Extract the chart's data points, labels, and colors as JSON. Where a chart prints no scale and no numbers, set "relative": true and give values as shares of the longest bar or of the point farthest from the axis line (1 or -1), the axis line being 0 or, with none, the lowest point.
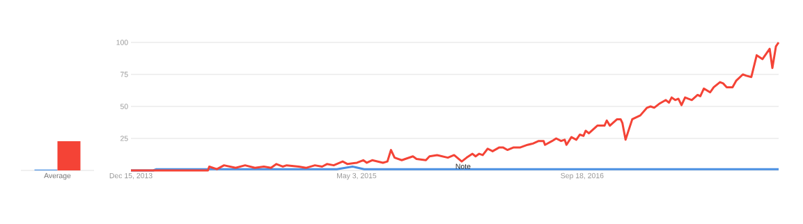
{
  "chart_data": [
    {
      "type": "bar",
      "relative": true,
      "categories": [
        "Average"
      ],
      "series": [
        {
          "color": "#4a90e2",
          "values": [
            0.03
          ]
        },
        {
          "color": "#f44336",
          "values": [
            1
          ]
        }
      ]
    },
    {
      "type": "line",
      "grid": "y",
      "xlim": [
        "2013-12-15",
        "2017-12-01"
      ],
      "ylim": [
        0,
        100
      ],
      "xticks": [
        {
          "value": "2013-12-15",
          "label": "Dec 15, 2013"
        },
        {
          "value": "2015-05-03",
          "label": "May 3, 2015"
        },
        {
          "value": "2016-09-18",
          "label": "Sep 18, 2016"
        }
      ],
      "yticks": [
        25,
        50,
        75,
        100
      ],
      "annotations": [
        {
          "text": "Note",
          "x": "2015-12-27",
          "y": 0
        }
      ],
      "series": [
        {
          "color": "#4a90e2",
          "x": [
            "2013-12-15",
            "2014-02-03",
            "2014-02-10",
            "2014-08-01",
            "2014-12-01",
            "2015-03-20",
            "2015-04-24",
            "2015-05-20",
            "2016-09-01",
            "2017-12-01"
          ],
          "values": [
            0,
            0,
            1,
            1,
            1,
            1,
            3,
            1,
            1,
            1
          ]
        },
        {
          "color": "#f44336",
          "x": [
            "2013-12-15",
            "2014-06-05",
            "2014-06-08",
            "2014-06-25",
            "2014-07-11",
            "2014-08-06",
            "2014-08-27",
            "2014-09-18",
            "2014-10-08",
            "2014-10-24",
            "2014-11-05",
            "2014-11-19",
            "2014-11-28",
            "2014-12-25",
            "2015-01-10",
            "2015-01-30",
            "2015-02-15",
            "2015-02-26",
            "2015-03-13",
            "2015-04-02",
            "2015-04-13",
            "2015-05-04",
            "2015-05-18",
            "2015-05-26",
            "2015-06-07",
            "2015-07-01",
            "2015-07-11",
            "2015-07-19",
            "2015-07-27",
            "2015-08-12",
            "2015-09-06",
            "2015-09-14",
            "2015-10-05",
            "2015-10-13",
            "2015-10-30",
            "2015-11-23",
            "2015-12-07",
            "2015-12-24",
            "2016-01-04",
            "2016-01-17",
            "2016-01-24",
            "2016-02-01",
            "2016-02-09",
            "2016-02-20",
            "2016-03-02",
            "2016-03-17",
            "2016-03-25",
            "2016-04-04",
            "2016-04-18",
            "2016-05-03",
            "2016-05-19",
            "2016-05-31",
            "2016-06-13",
            "2016-06-24",
            "2016-06-27",
            "2016-07-13",
            "2016-07-22",
            "2016-08-02",
            "2016-08-10",
            "2016-08-14",
            "2016-08-25",
            "2016-09-05",
            "2016-09-13",
            "2016-09-21",
            "2016-09-26",
            "2016-10-03",
            "2016-10-22",
            "2016-11-07",
            "2016-11-12",
            "2016-11-19",
            "2016-12-05",
            "2016-12-13",
            "2016-12-17",
            "2016-12-24",
            "2017-01-08",
            "2017-01-26",
            "2017-02-10",
            "2017-02-18",
            "2017-02-26",
            "2017-03-09",
            "2017-03-24",
            "2017-03-31",
            "2017-04-06",
            "2017-04-14",
            "2017-04-21",
            "2017-04-28",
            "2017-05-06",
            "2017-05-13",
            "2017-05-21",
            "2017-06-03",
            "2017-06-09",
            "2017-06-17",
            "2017-07-01",
            "2017-07-09",
            "2017-07-23",
            "2017-07-30",
            "2017-08-07",
            "2017-08-20",
            "2017-08-28",
            "2017-09-12",
            "2017-09-20",
            "2017-10-01",
            "2017-10-13",
            "2017-10-26",
            "2017-11-11",
            "2017-11-17",
            "2017-11-25",
            "2017-12-01"
          ],
          "values": [
            0,
            0,
            3,
            1,
            4,
            2,
            4,
            2,
            3,
            2,
            5,
            3,
            4,
            3,
            2,
            4,
            3,
            5,
            4,
            7,
            5,
            6,
            8,
            6,
            8,
            6,
            7,
            16,
            10,
            8,
            11,
            9,
            8,
            11,
            12,
            10,
            12,
            7,
            10,
            13,
            11,
            13,
            12,
            17,
            15,
            18,
            18,
            16,
            18,
            18,
            20,
            21,
            23,
            23,
            20,
            23,
            25,
            23,
            24,
            20,
            26,
            24,
            28,
            27,
            31,
            29,
            35,
            35,
            39,
            35,
            40,
            40,
            37,
            24,
            40,
            43,
            49,
            50,
            49,
            52,
            55,
            53,
            57,
            55,
            56,
            51,
            57,
            56,
            55,
            59,
            58,
            64,
            61,
            65,
            69,
            68,
            65,
            65,
            70,
            75,
            74,
            73,
            90,
            87,
            95,
            80,
            97,
            100
          ]
        }
      ]
    }
  ]
}
